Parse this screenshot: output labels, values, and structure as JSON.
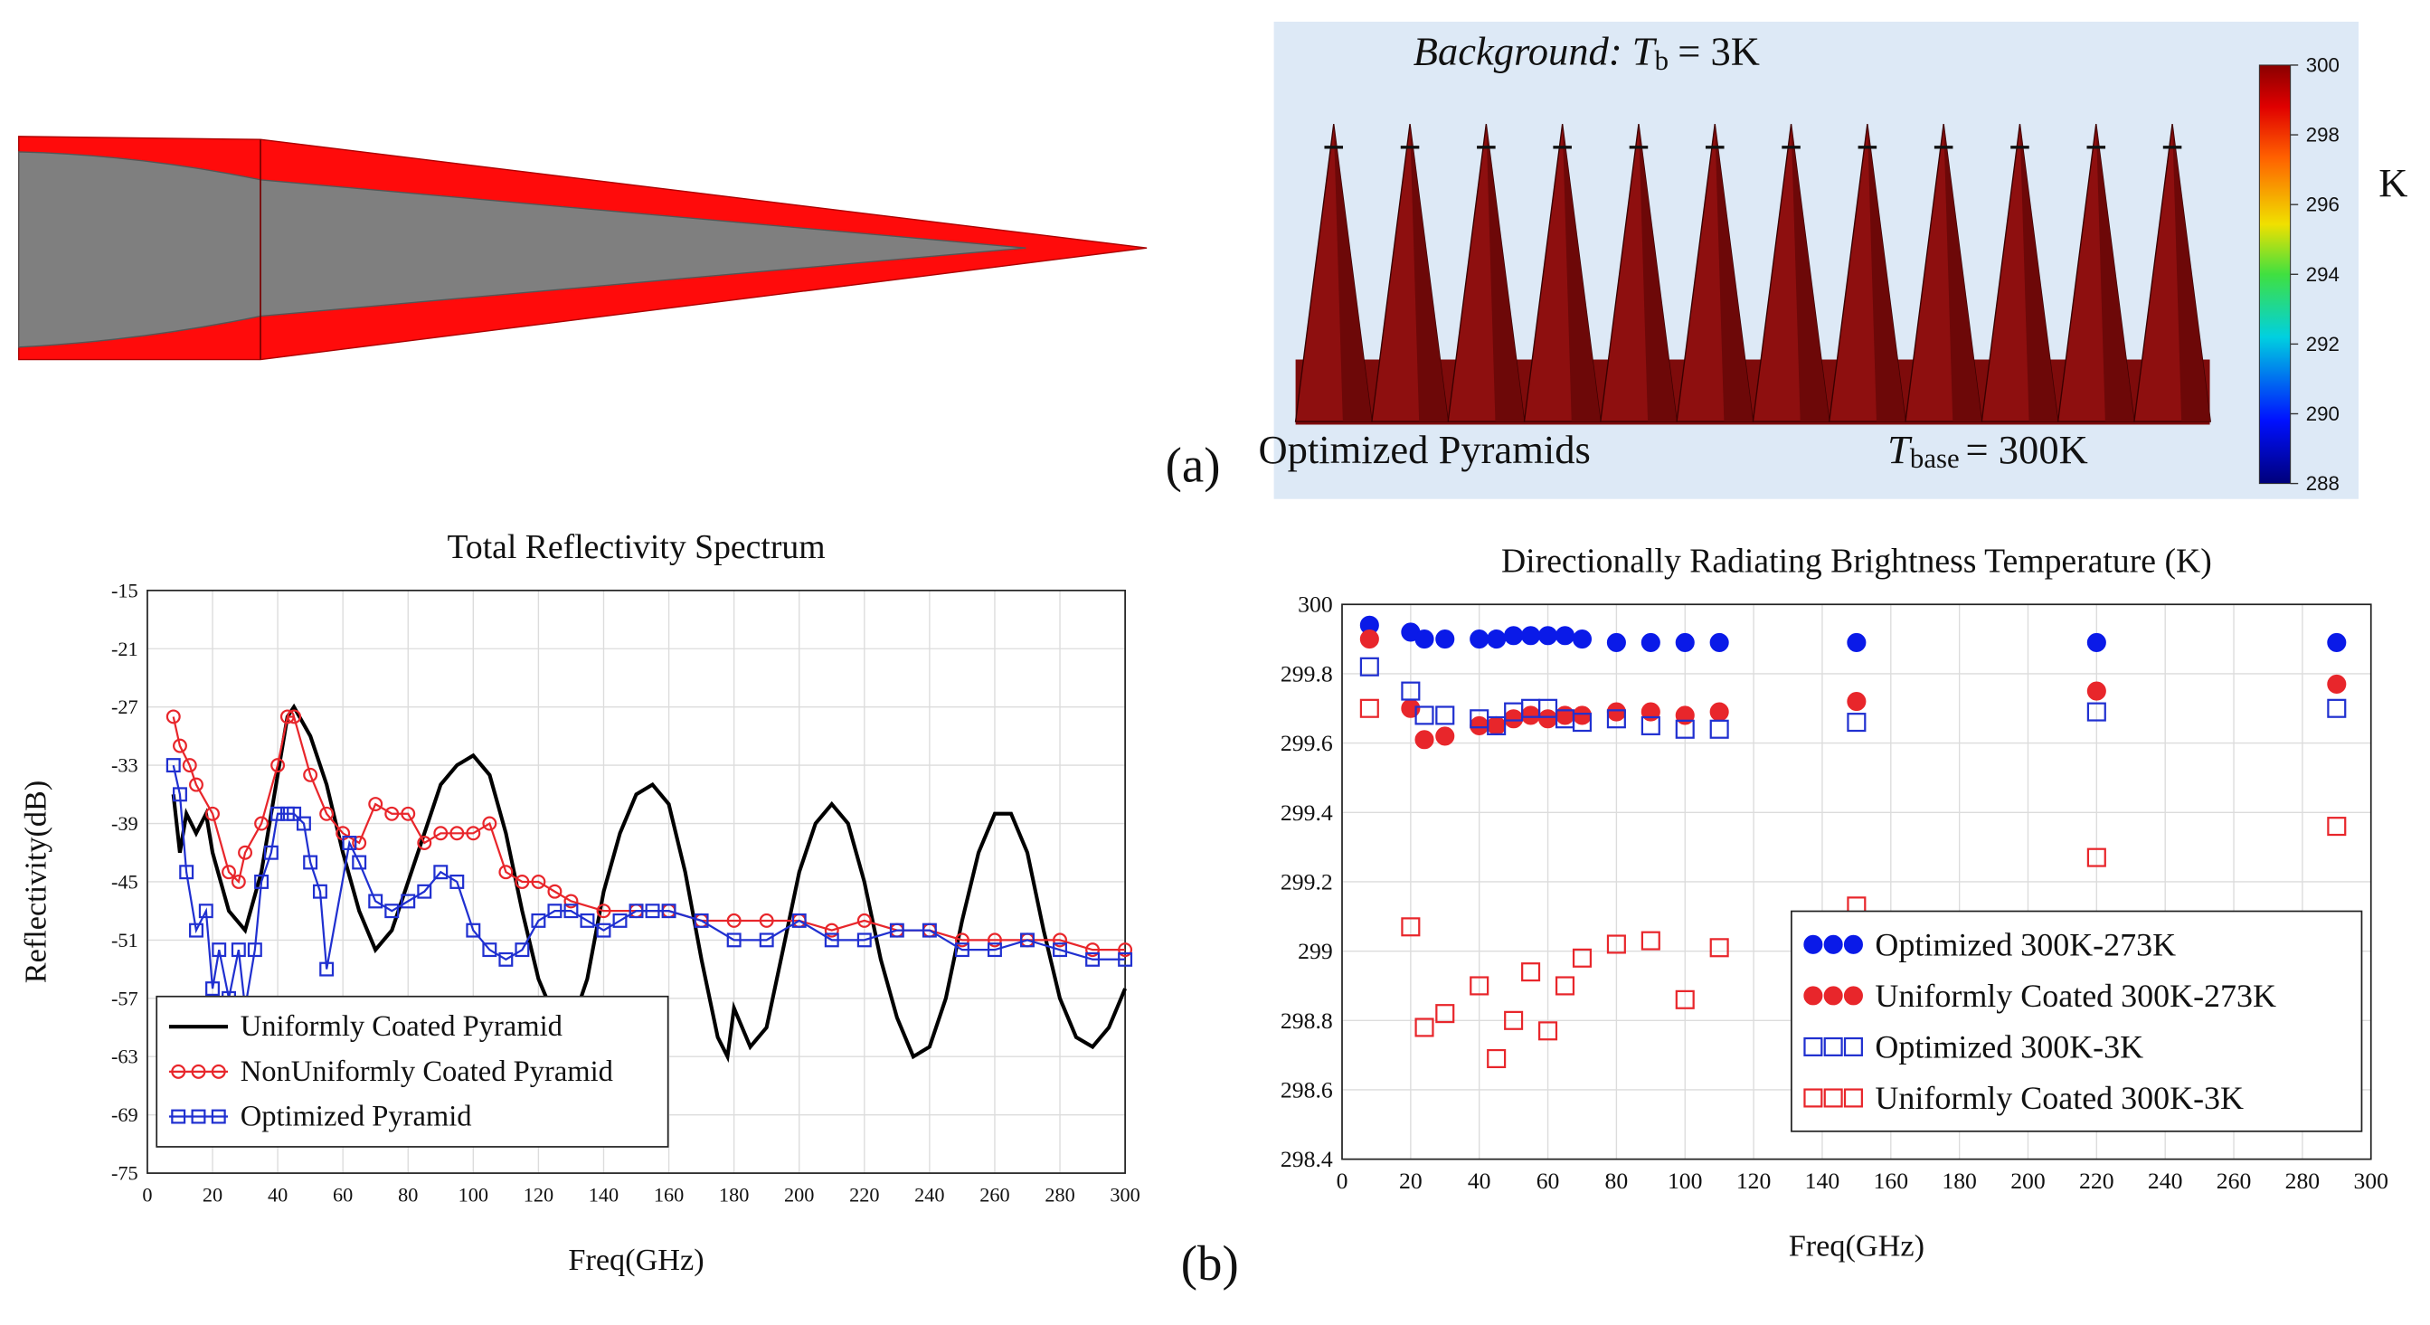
{
  "panel_a": {
    "background": {
      "label": "Background:",
      "symbol": "T",
      "subscript": "b",
      "value": "= 3K"
    },
    "panel_label": "(a)",
    "caption": "Optimized Pyramids",
    "base": {
      "symbol": "T",
      "subscript": "base",
      "value": "= 300K"
    },
    "colorbar": {
      "ticks": [
        300,
        298,
        296,
        294,
        292,
        290,
        288
      ],
      "lim": [
        288,
        300
      ],
      "unit": "K"
    }
  },
  "panel_b": {
    "panel_label": "(b)"
  },
  "chart_data": [
    {
      "type": "line",
      "title": "Total Reflectivity Spectrum",
      "x_label": "Freq(GHz)",
      "y_label": "Reflectivity(dB)",
      "xlim": [
        0,
        300
      ],
      "xticks": [
        0,
        20,
        40,
        60,
        80,
        100,
        120,
        140,
        160,
        180,
        200,
        220,
        240,
        260,
        280,
        300
      ],
      "ylim": [
        -75,
        -15
      ],
      "yticks": [
        -15,
        -21,
        -27,
        -33,
        -39,
        -45,
        -51,
        -57,
        -63,
        -69,
        -75
      ],
      "grid": true,
      "legend": "lower left",
      "series": [
        {
          "name": "Uniformly Coated Pyramid",
          "color": "#000000",
          "marker": "none",
          "x": [
            8,
            10,
            12,
            15,
            18,
            20,
            25,
            30,
            35,
            40,
            43,
            45,
            50,
            55,
            60,
            65,
            70,
            75,
            80,
            85,
            90,
            95,
            100,
            105,
            110,
            115,
            120,
            125,
            130,
            135,
            140,
            145,
            150,
            155,
            160,
            165,
            170,
            175,
            178,
            180,
            185,
            190,
            195,
            200,
            205,
            210,
            215,
            220,
            225,
            230,
            235,
            240,
            245,
            250,
            255,
            260,
            265,
            270,
            275,
            280,
            285,
            290,
            295,
            300
          ],
          "values": [
            -36,
            -42,
            -38,
            -40,
            -38,
            -42,
            -48,
            -50,
            -44,
            -34,
            -28,
            -27,
            -30,
            -35,
            -42,
            -48,
            -52,
            -50,
            -45,
            -40,
            -35,
            -33,
            -32,
            -34,
            -40,
            -48,
            -55,
            -59,
            -60,
            -55,
            -46,
            -40,
            -36,
            -35,
            -37,
            -44,
            -53,
            -61,
            -63,
            -58,
            -62,
            -60,
            -52,
            -44,
            -39,
            -37,
            -39,
            -45,
            -53,
            -59,
            -63,
            -62,
            -57,
            -49,
            -42,
            -38,
            -38,
            -42,
            -50,
            -57,
            -61,
            -62,
            -60,
            -56
          ]
        },
        {
          "name": "NonUniformly Coated Pyramid",
          "color": "#e8262b",
          "marker": "circle",
          "x": [
            8,
            10,
            13,
            15,
            20,
            25,
            28,
            30,
            35,
            40,
            43,
            45,
            50,
            55,
            60,
            65,
            70,
            75,
            80,
            85,
            90,
            95,
            100,
            105,
            110,
            115,
            120,
            125,
            130,
            140,
            150,
            160,
            170,
            180,
            190,
            200,
            210,
            220,
            230,
            240,
            250,
            260,
            270,
            280,
            290,
            300
          ],
          "values": [
            -28,
            -31,
            -33,
            -35,
            -38,
            -44,
            -45,
            -42,
            -39,
            -33,
            -28,
            -28,
            -34,
            -38,
            -40,
            -41,
            -37,
            -38,
            -38,
            -41,
            -40,
            -40,
            -40,
            -39,
            -44,
            -45,
            -45,
            -46,
            -47,
            -48,
            -48,
            -48,
            -49,
            -49,
            -49,
            -49,
            -50,
            -49,
            -50,
            -50,
            -51,
            -51,
            -51,
            -51,
            -52,
            -52
          ]
        },
        {
          "name": "Optimized Pyramid",
          "color": "#2030d0",
          "marker": "square",
          "x": [
            8,
            10,
            12,
            15,
            18,
            20,
            22,
            25,
            28,
            30,
            33,
            35,
            38,
            40,
            43,
            45,
            48,
            50,
            53,
            55,
            62,
            65,
            70,
            75,
            80,
            85,
            90,
            95,
            100,
            105,
            110,
            115,
            120,
            125,
            130,
            135,
            140,
            145,
            150,
            155,
            160,
            170,
            180,
            190,
            200,
            210,
            220,
            230,
            240,
            250,
            260,
            270,
            280,
            290,
            300
          ],
          "values": [
            -33,
            -36,
            -44,
            -50,
            -48,
            -56,
            -52,
            -57,
            -52,
            -58,
            -52,
            -45,
            -42,
            -38,
            -38,
            -38,
            -39,
            -43,
            -46,
            -54,
            -41,
            -43,
            -47,
            -48,
            -47,
            -46,
            -44,
            -45,
            -50,
            -52,
            -53,
            -52,
            -49,
            -48,
            -48,
            -49,
            -50,
            -49,
            -48,
            -48,
            -48,
            -49,
            -51,
            -51,
            -49,
            -51,
            -51,
            -50,
            -50,
            -52,
            -52,
            -51,
            -52,
            -53,
            -53
          ]
        }
      ]
    },
    {
      "type": "scatter",
      "title": "Directionally Radiating Brightness Temperature (K)",
      "x_label": "Freq(GHz)",
      "xlim": [
        0,
        300
      ],
      "xticks": [
        0,
        20,
        40,
        60,
        80,
        100,
        120,
        140,
        160,
        180,
        200,
        220,
        240,
        260,
        280,
        300
      ],
      "ylim": [
        298.4,
        300
      ],
      "yticks": [
        298.4,
        298.6,
        298.8,
        299,
        299.2,
        299.4,
        299.6,
        299.8,
        300
      ],
      "grid": true,
      "legend": "lower right",
      "series": [
        {
          "name": "Optimized 300K-273K",
          "color": "#0a1ae8",
          "marker": "circle",
          "filled": true,
          "x": [
            8,
            20,
            24,
            30,
            40,
            45,
            50,
            55,
            60,
            65,
            70,
            80,
            90,
            100,
            110,
            150,
            220,
            290
          ],
          "values": [
            299.94,
            299.92,
            299.9,
            299.9,
            299.9,
            299.9,
            299.91,
            299.91,
            299.91,
            299.91,
            299.9,
            299.89,
            299.89,
            299.89,
            299.89,
            299.89,
            299.89,
            299.89
          ]
        },
        {
          "name": "Uniformly Coated 300K-273K",
          "color": "#e8262b",
          "marker": "circle",
          "filled": true,
          "x": [
            8,
            20,
            24,
            30,
            40,
            45,
            50,
            55,
            60,
            65,
            70,
            80,
            90,
            100,
            110,
            150,
            220,
            290
          ],
          "values": [
            299.9,
            299.7,
            299.61,
            299.62,
            299.65,
            299.65,
            299.67,
            299.68,
            299.67,
            299.68,
            299.68,
            299.69,
            299.69,
            299.68,
            299.69,
            299.72,
            299.75,
            299.77
          ]
        },
        {
          "name": "Optimized 300K-3K",
          "color": "#2030d0",
          "marker": "square",
          "filled": false,
          "x": [
            8,
            20,
            24,
            30,
            40,
            45,
            50,
            55,
            60,
            65,
            70,
            80,
            90,
            100,
            110,
            150,
            220,
            290
          ],
          "values": [
            299.82,
            299.75,
            299.68,
            299.68,
            299.67,
            299.65,
            299.69,
            299.7,
            299.7,
            299.67,
            299.66,
            299.67,
            299.65,
            299.64,
            299.64,
            299.66,
            299.69,
            299.7
          ]
        },
        {
          "name": "Uniformly Coated 300K-3K",
          "color": "#e8262b",
          "marker": "square",
          "filled": false,
          "x": [
            8,
            20,
            24,
            30,
            40,
            45,
            50,
            55,
            60,
            65,
            70,
            80,
            90,
            100,
            110,
            150,
            220,
            290
          ],
          "values": [
            299.7,
            299.07,
            298.78,
            298.82,
            298.9,
            298.69,
            298.8,
            298.94,
            298.77,
            298.9,
            298.98,
            299.02,
            299.03,
            298.86,
            299.01,
            299.13,
            299.27,
            299.36
          ]
        }
      ]
    }
  ]
}
